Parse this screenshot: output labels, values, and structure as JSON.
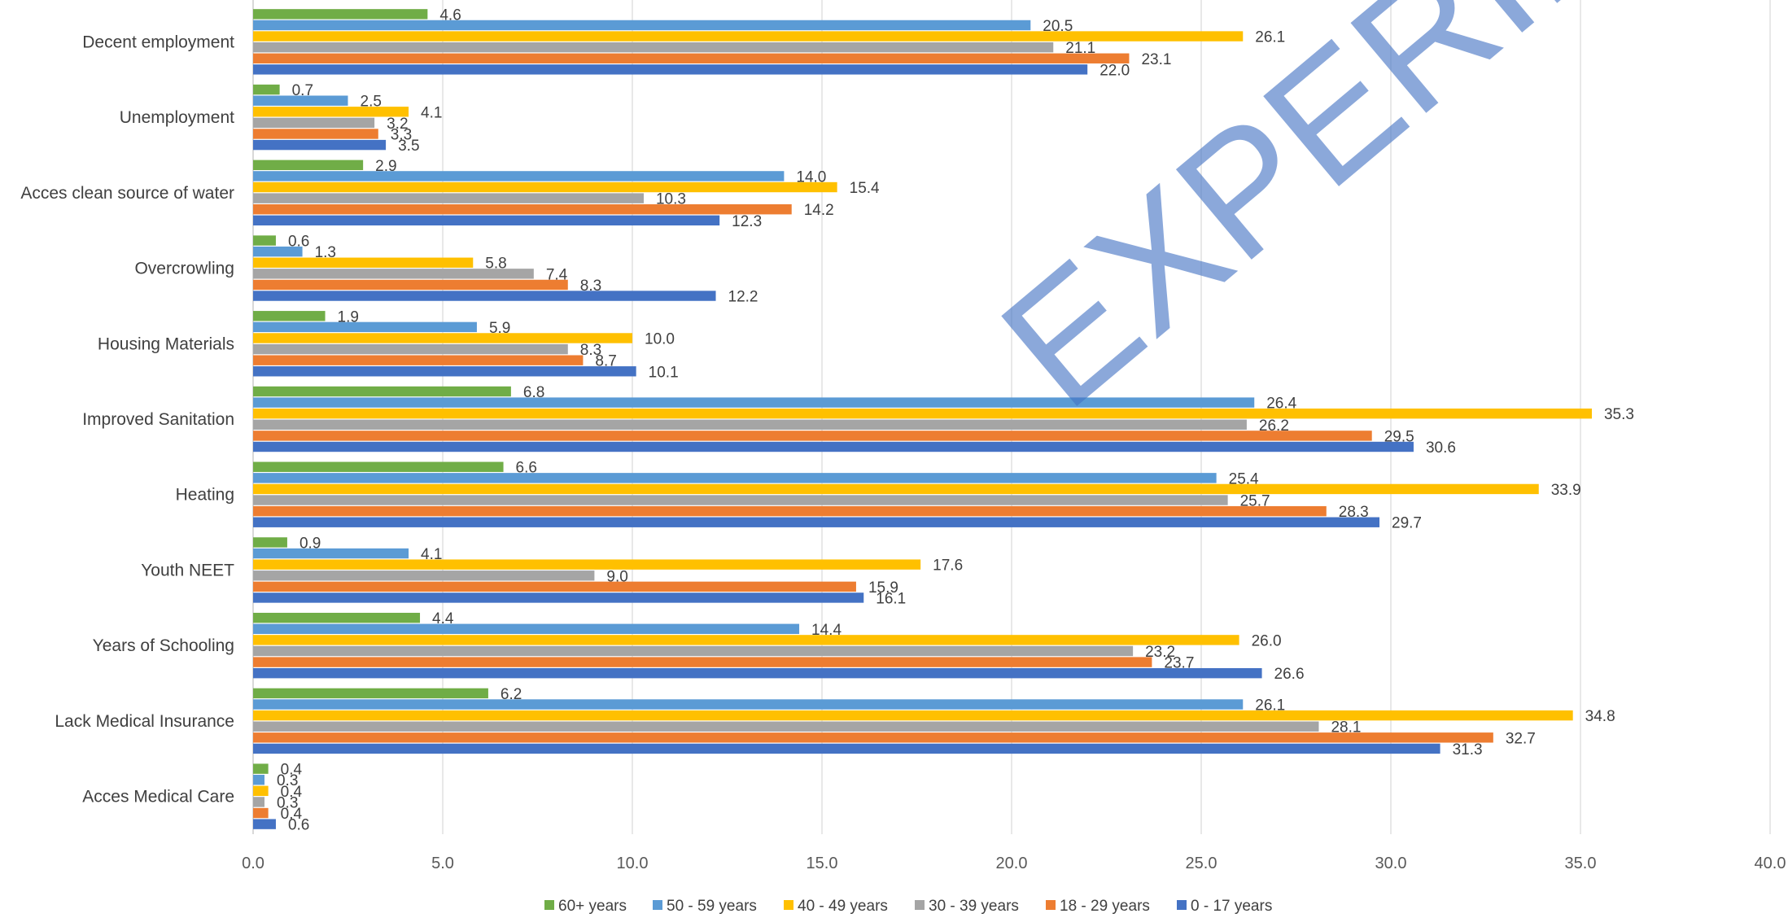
{
  "chart_data": {
    "type": "bar",
    "orientation": "horizontal",
    "title": "",
    "xlabel": "",
    "ylabel": "",
    "xlim": [
      0,
      40
    ],
    "x_ticks": [
      "0.0",
      "5.0",
      "10.0",
      "15.0",
      "20.0",
      "25.0",
      "30.0",
      "35.0",
      "40.0"
    ],
    "grid": "vertical",
    "legend_position": "bottom",
    "watermark": "EXPERIMENTAL",
    "categories": [
      "Decent employment",
      "Unemployment",
      "Acces clean source of water",
      "Overcrowling",
      "Housing Materials",
      "Improved Sanitation",
      "Heating",
      "Youth NEET",
      "Years of Schooling",
      "Lack Medical Insurance",
      "Acces Medical Care"
    ],
    "series": [
      {
        "name": "60+ years",
        "color": "#70ad47",
        "values": [
          4.6,
          0.7,
          2.9,
          0.6,
          1.9,
          6.8,
          6.6,
          0.9,
          4.4,
          6.2,
          0.4
        ],
        "labels": [
          "4.6",
          "0.7",
          "2.9",
          "0.6",
          "1.9",
          "6.8",
          "6.6",
          "0.9",
          "4.4",
          "6.2",
          "0.4"
        ]
      },
      {
        "name": "50 - 59 years",
        "color": "#5b9bd5",
        "values": [
          20.5,
          2.5,
          14.0,
          1.3,
          5.9,
          26.4,
          25.4,
          4.1,
          14.4,
          26.1,
          0.3
        ],
        "labels": [
          "20.5",
          "2.5",
          "14.0",
          "1.3",
          "5.9",
          "26.4",
          "25.4",
          "4.1",
          "14.4",
          "26.1",
          "0.3"
        ]
      },
      {
        "name": "40 - 49 years",
        "color": "#ffc000",
        "values": [
          26.1,
          4.1,
          15.4,
          5.8,
          10.0,
          35.3,
          33.9,
          17.6,
          26.0,
          34.8,
          0.4
        ],
        "labels": [
          "26.1",
          "4.1",
          "15.4",
          "5.8",
          "10.0",
          "35.3",
          "33.9",
          "17.6",
          "26.0",
          "34.8",
          "0.4"
        ]
      },
      {
        "name": "30 - 39 years",
        "color": "#a5a5a5",
        "values": [
          21.1,
          3.2,
          10.3,
          7.4,
          8.3,
          26.2,
          25.7,
          9.0,
          23.2,
          28.1,
          0.3
        ],
        "labels": [
          "21.1",
          "3.2",
          "10.3",
          "7.4",
          "8.3",
          "26.2",
          "25.7",
          "9.0",
          "23.2",
          "28.1",
          "0.3"
        ]
      },
      {
        "name": "18 - 29 years",
        "color": "#ed7d31",
        "values": [
          23.1,
          3.3,
          14.2,
          8.3,
          8.7,
          29.5,
          28.3,
          15.9,
          23.7,
          32.7,
          0.4
        ],
        "labels": [
          "23.1",
          "3.3",
          "14.2",
          "8.3",
          "8.7",
          "29.5",
          "28.3",
          "15.9",
          "23.7",
          "32.7",
          "0.4"
        ]
      },
      {
        "name": "0 - 17 years",
        "color": "#4472c4",
        "values": [
          22.0,
          3.5,
          12.3,
          12.2,
          10.1,
          30.6,
          29.7,
          16.1,
          26.6,
          31.3,
          0.6
        ],
        "labels": [
          "22.0",
          "3.5",
          "12.3",
          "12.2",
          "10.1",
          "30.6",
          "29.7",
          "16.1",
          "26.6",
          "31.3",
          "0.6"
        ]
      }
    ]
  }
}
